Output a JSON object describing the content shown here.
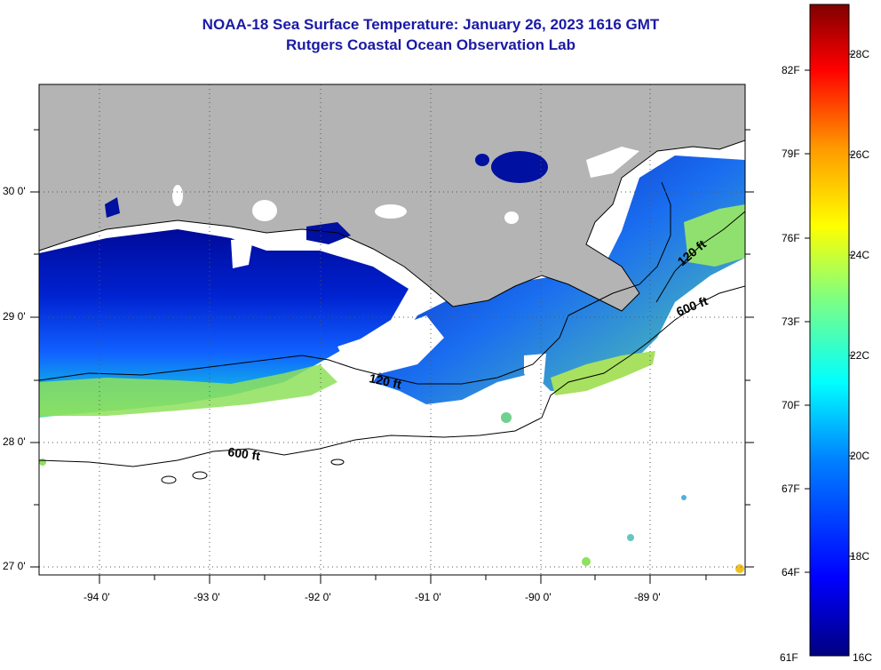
{
  "title_line1": "NOAA-18 Sea Surface Temperature:  January 26, 2023 1616 GMT",
  "title_line2": "Rutgers Coastal Ocean Observation Lab",
  "map": {
    "lon_ticks": [
      "-94 0'",
      "-93 0'",
      "-92 0'",
      "-91 0'",
      "-90 0'",
      "-89 0'"
    ],
    "lat_ticks": [
      "30 0'",
      "29 0'",
      "28 0'",
      "27 0'"
    ],
    "contour_labels": [
      "120 ft",
      "600 ft",
      "120 ft",
      "600 ft"
    ],
    "land_color": "#b4b4b4",
    "cloud_color": "#ffffff"
  },
  "colorbar": {
    "fahrenheit_labels": [
      "82F",
      "79F",
      "76F",
      "73F",
      "70F",
      "67F",
      "64F",
      "61F"
    ],
    "celsius_labels": [
      "28C",
      "26C",
      "24C",
      "22C",
      "20C",
      "18C",
      "16C"
    ],
    "min_c": 16,
    "max_c": 29
  }
}
